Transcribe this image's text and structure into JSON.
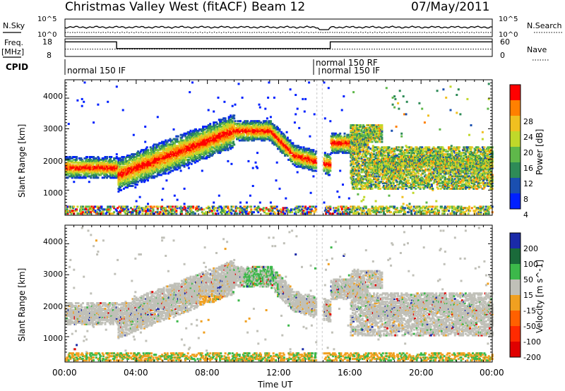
{
  "header": {
    "station": "Christmas Valley West (fitACF)",
    "beam": "Beam 12",
    "date": "07/May/2011"
  },
  "chart_data": [
    {
      "type": "line",
      "name_label": "N.Sky",
      "right_label": "N.Search",
      "y_ticks_left": [
        "10^5",
        "10^0"
      ],
      "y_ticks_right": [
        "10^5",
        "10^0"
      ]
    },
    {
      "type": "line",
      "name_label": "Freq.",
      "unit_label": "[MHz]",
      "right_label": "Nave",
      "y_ticks_left": [
        "18",
        "8"
      ],
      "y_ticks_right": [
        "60",
        "0"
      ],
      "ylim_left": [
        8,
        18
      ],
      "ylim_right": [
        0,
        60
      ],
      "freq_x": [
        0.0,
        2.9,
        2.9,
        14.9,
        14.9,
        24.0
      ],
      "freq_y": [
        16.3,
        16.3,
        12.5,
        12.5,
        16.3,
        16.3
      ],
      "nave_y": 25
    },
    {
      "type": "table",
      "label": "CPID",
      "segments": [
        {
          "text": "normal 150 IF",
          "start": 0.0
        },
        {
          "text": "normal 150 RF",
          "start": 14.3
        },
        {
          "text": "normal 150 IF",
          "start": 14.55
        }
      ]
    },
    {
      "type": "heatmap",
      "ylabel": "Slant Range [km]",
      "y_ticks": [
        "1000",
        "2000",
        "3000",
        "4000"
      ],
      "ylim": [
        180,
        4600
      ],
      "colorbar_label": "Power [dB]",
      "colorbar_ticks": [
        "4",
        "8",
        "12",
        "16",
        "20",
        "24",
        "28"
      ],
      "zlim": [
        0,
        30
      ]
    },
    {
      "type": "heatmap",
      "ylabel": "Slant Range [km]",
      "y_ticks": [
        "1000",
        "2000",
        "3000",
        "4000"
      ],
      "ylim": [
        180,
        4600
      ],
      "xlabel": "Time UT",
      "x_ticks": [
        "00:00",
        "04:00",
        "08:00",
        "12:00",
        "16:00",
        "20:00",
        "00:00"
      ],
      "xlim": [
        0,
        24
      ],
      "colorbar_label": "Velocity [m s^-1]",
      "colorbar_ticks": [
        "200",
        "100",
        "50",
        "15",
        "-15",
        "-50",
        "-100",
        "-200"
      ]
    }
  ],
  "colors": {
    "power_scale": [
      "#0020ff",
      "#1a4fb0",
      "#2e8b57",
      "#5fb84a",
      "#c0d82a",
      "#f0c020",
      "#ff8000",
      "#ff0000"
    ],
    "velocity_scale": [
      "#1a2aa8",
      "#1a6a3a",
      "#3cb84a",
      "#c0c0b8",
      "#f0a020",
      "#ff6000",
      "#e00000"
    ],
    "ground_scatter": "#c0c0b8"
  }
}
